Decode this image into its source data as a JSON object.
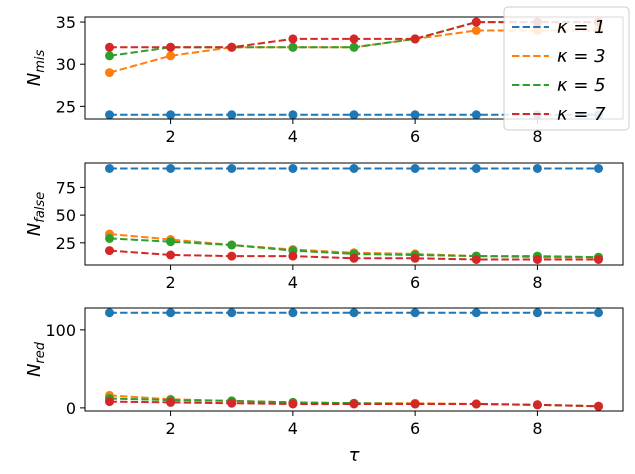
{
  "chart_data": [
    {
      "type": "line",
      "x": [
        1,
        2,
        3,
        4,
        5,
        6,
        7,
        8,
        9
      ],
      "ylabel": {
        "base": "N",
        "sub": "mis"
      },
      "ylim": [
        23.5,
        35.6
      ],
      "yticks": [
        25,
        30,
        35
      ],
      "xticks": [
        2,
        4,
        6,
        8
      ],
      "series": [
        {
          "name": "κ = 1",
          "color": "#1f77b4",
          "values": [
            24,
            24,
            24,
            24,
            24,
            24,
            24,
            24,
            24
          ]
        },
        {
          "name": "κ = 3",
          "color": "#ff7f0e",
          "values": [
            29,
            31,
            32,
            32,
            32,
            33,
            34,
            34,
            34
          ]
        },
        {
          "name": "κ = 5",
          "color": "#2ca02c",
          "values": [
            31,
            32,
            32,
            32,
            32,
            33,
            35,
            35,
            35
          ]
        },
        {
          "name": "κ = 7",
          "color": "#d62728",
          "values": [
            32,
            32,
            32,
            33,
            33,
            33,
            35,
            35,
            35
          ]
        }
      ],
      "legend": {
        "placement": "top-right"
      }
    },
    {
      "type": "line",
      "x": [
        1,
        2,
        3,
        4,
        5,
        6,
        7,
        8,
        9
      ],
      "ylabel": {
        "base": "N",
        "sub": "false"
      },
      "ylim": [
        5,
        97
      ],
      "yticks": [
        25,
        50,
        75
      ],
      "xticks": [
        2,
        4,
        6,
        8
      ],
      "series": [
        {
          "name": "κ = 1",
          "color": "#1f77b4",
          "values": [
            92,
            92,
            92,
            92,
            92,
            92,
            92,
            92,
            92
          ]
        },
        {
          "name": "κ = 3",
          "color": "#ff7f0e",
          "values": [
            33,
            28,
            23,
            19,
            16,
            15,
            13,
            12,
            12
          ]
        },
        {
          "name": "κ = 5",
          "color": "#2ca02c",
          "values": [
            29,
            26,
            23,
            18,
            15,
            14,
            13,
            13,
            12
          ]
        },
        {
          "name": "κ = 7",
          "color": "#d62728",
          "values": [
            18,
            14,
            13,
            13,
            11,
            11,
            10,
            10,
            10
          ]
        }
      ]
    },
    {
      "type": "line",
      "x": [
        1,
        2,
        3,
        4,
        5,
        6,
        7,
        8,
        9
      ],
      "xlabel": "τ",
      "ylabel": {
        "base": "N",
        "sub": "red"
      },
      "ylim": [
        -4,
        128
      ],
      "yticks": [
        0,
        100
      ],
      "xticks": [
        2,
        4,
        6,
        8
      ],
      "series": [
        {
          "name": "κ = 1",
          "color": "#1f77b4",
          "values": [
            122,
            122,
            122,
            122,
            122,
            122,
            122,
            122,
            122
          ]
        },
        {
          "name": "κ = 3",
          "color": "#ff7f0e",
          "values": [
            16,
            11,
            9,
            7,
            6,
            6,
            5,
            4,
            2
          ]
        },
        {
          "name": "κ = 5",
          "color": "#2ca02c",
          "values": [
            12,
            10,
            9,
            7,
            6,
            5,
            5,
            4,
            2
          ]
        },
        {
          "name": "κ = 7",
          "color": "#d62728",
          "values": [
            8,
            7,
            6,
            5,
            5,
            5,
            5,
            4,
            2
          ]
        }
      ]
    }
  ]
}
